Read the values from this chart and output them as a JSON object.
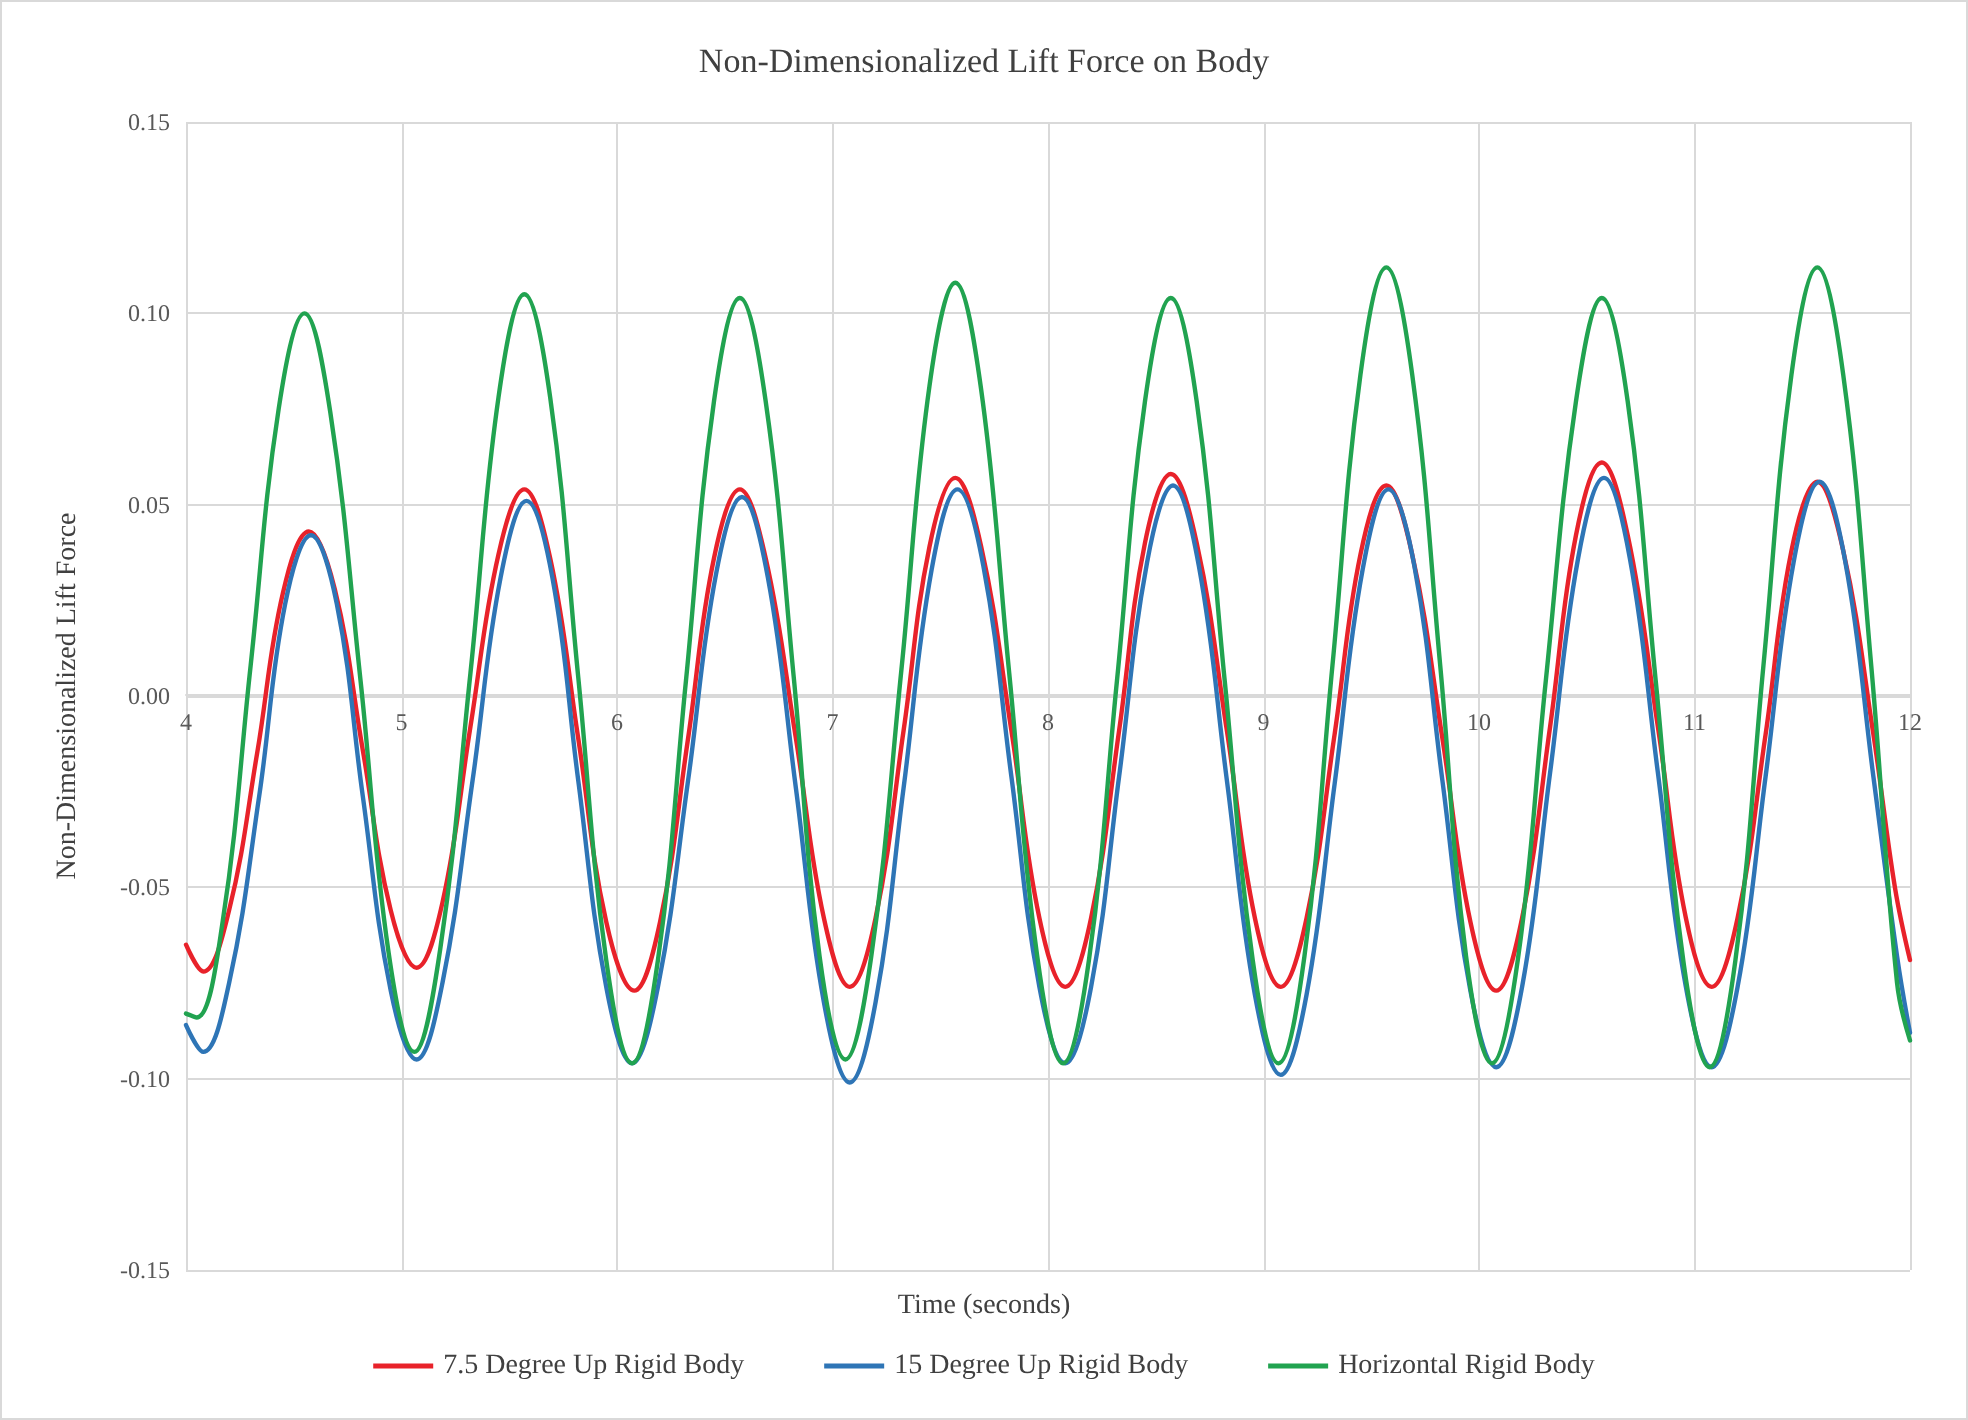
{
  "chart_data": {
    "type": "line",
    "title": "Non-Dimensionalized Lift Force on Body",
    "xlabel": "Time (seconds)",
    "ylabel": "Non-Dimensionalized Lift Force",
    "xlim": [
      4,
      12
    ],
    "xticks": [
      4,
      5,
      6,
      7,
      8,
      9,
      10,
      11,
      12
    ],
    "ylim": [
      -0.15,
      0.15
    ],
    "yticks": [
      {
        "value": -0.15,
        "label": "-0.15"
      },
      {
        "value": -0.1,
        "label": "-0.10"
      },
      {
        "value": -0.05,
        "label": "-0.05"
      },
      {
        "value": 0,
        "label": "0.00"
      },
      {
        "value": 0.05,
        "label": "0.05"
      },
      {
        "value": 0.1,
        "label": "0.10"
      },
      {
        "value": 0.15,
        "label": "0.15"
      }
    ],
    "grid": true,
    "legend": "bottom",
    "marker": "none",
    "line_style": "solid",
    "series": [
      {
        "name": "7.5 Degree Up Rigid Body",
        "color": "#e8222a",
        "x": [
          4.0,
          4.08,
          4.2,
          4.33,
          4.45,
          4.57,
          4.69,
          4.82,
          4.95,
          5.07,
          5.19,
          5.32,
          5.45,
          5.57,
          5.69,
          5.82,
          5.95,
          6.08,
          6.2,
          6.33,
          6.45,
          6.57,
          6.69,
          6.83,
          6.96,
          7.08,
          7.2,
          7.33,
          7.45,
          7.57,
          7.69,
          7.83,
          7.96,
          8.08,
          8.2,
          8.33,
          8.45,
          8.57,
          8.69,
          8.83,
          8.96,
          9.08,
          9.2,
          9.33,
          9.45,
          9.57,
          9.69,
          9.83,
          9.96,
          10.08,
          10.2,
          10.33,
          10.45,
          10.57,
          10.69,
          10.83,
          10.96,
          11.08,
          11.2,
          11.33,
          11.45,
          11.57,
          11.69,
          11.83,
          11.93,
          12.0
        ],
        "values": [
          -0.065,
          -0.072,
          -0.056,
          -0.015,
          0.027,
          0.043,
          0.028,
          -0.014,
          -0.056,
          -0.071,
          -0.054,
          -0.008,
          0.037,
          0.054,
          0.036,
          -0.011,
          -0.059,
          -0.077,
          -0.059,
          -0.011,
          0.036,
          0.054,
          0.036,
          -0.011,
          -0.058,
          -0.076,
          -0.058,
          -0.009,
          0.039,
          0.057,
          0.039,
          -0.009,
          -0.058,
          -0.076,
          -0.058,
          -0.009,
          0.04,
          0.058,
          0.04,
          -0.009,
          -0.058,
          -0.076,
          -0.058,
          -0.01,
          0.037,
          0.055,
          0.037,
          -0.011,
          -0.059,
          -0.077,
          -0.058,
          -0.008,
          0.042,
          0.061,
          0.042,
          -0.008,
          -0.058,
          -0.076,
          -0.058,
          -0.01,
          0.038,
          0.056,
          0.038,
          -0.01,
          -0.05,
          -0.069
        ]
      },
      {
        "name": "15 Degree Up Rigid Body",
        "color": "#2e75b6",
        "x": [
          4.0,
          4.08,
          4.2,
          4.34,
          4.46,
          4.58,
          4.7,
          4.82,
          4.95,
          5.07,
          5.19,
          5.33,
          5.46,
          5.58,
          5.7,
          5.82,
          5.95,
          6.07,
          6.19,
          6.33,
          6.46,
          6.58,
          6.7,
          6.83,
          6.96,
          7.08,
          7.2,
          7.33,
          7.46,
          7.58,
          7.7,
          7.83,
          7.96,
          8.08,
          8.2,
          8.33,
          8.46,
          8.58,
          8.7,
          8.83,
          8.96,
          9.08,
          9.2,
          9.33,
          9.46,
          9.58,
          9.7,
          9.83,
          9.96,
          10.08,
          10.2,
          10.33,
          10.46,
          10.58,
          10.7,
          10.83,
          10.96,
          11.08,
          11.2,
          11.33,
          11.46,
          11.58,
          11.7,
          11.83,
          11.94,
          12.0
        ],
        "values": [
          -0.086,
          -0.093,
          -0.075,
          -0.026,
          0.024,
          0.042,
          0.024,
          -0.026,
          -0.077,
          -0.095,
          -0.075,
          -0.022,
          0.031,
          0.051,
          0.031,
          -0.022,
          -0.076,
          -0.096,
          -0.076,
          -0.022,
          0.032,
          0.052,
          0.031,
          -0.024,
          -0.08,
          -0.101,
          -0.08,
          -0.024,
          0.033,
          0.054,
          0.034,
          -0.021,
          -0.076,
          -0.096,
          -0.076,
          -0.021,
          0.035,
          0.055,
          0.034,
          -0.022,
          -0.078,
          -0.099,
          -0.078,
          -0.023,
          0.033,
          0.054,
          0.034,
          -0.022,
          -0.077,
          -0.097,
          -0.076,
          -0.02,
          0.036,
          0.057,
          0.036,
          -0.02,
          -0.076,
          -0.097,
          -0.076,
          -0.021,
          0.035,
          0.056,
          0.035,
          -0.021,
          -0.068,
          -0.088
        ]
      },
      {
        "name": "Horizontal Rigid Body",
        "color": "#21a350",
        "x": [
          4.0,
          4.05,
          4.17,
          4.3,
          4.43,
          4.55,
          4.67,
          4.81,
          4.94,
          5.06,
          5.18,
          5.32,
          5.45,
          5.57,
          5.69,
          5.82,
          5.95,
          6.07,
          6.19,
          6.32,
          6.45,
          6.57,
          6.69,
          6.82,
          6.94,
          7.06,
          7.18,
          7.32,
          7.45,
          7.57,
          7.69,
          7.82,
          7.95,
          8.07,
          8.19,
          8.32,
          8.45,
          8.57,
          8.69,
          8.82,
          8.95,
          9.07,
          9.19,
          9.32,
          9.45,
          9.57,
          9.69,
          9.82,
          9.94,
          10.06,
          10.18,
          10.31,
          10.45,
          10.57,
          10.69,
          10.82,
          10.95,
          11.07,
          11.19,
          11.32,
          11.45,
          11.57,
          11.69,
          11.82,
          11.94,
          12.0
        ],
        "values": [
          -0.083,
          -0.084,
          -0.059,
          0.008,
          0.075,
          0.1,
          0.074,
          0.004,
          -0.067,
          -0.093,
          -0.066,
          0.006,
          0.078,
          0.105,
          0.078,
          0.005,
          -0.069,
          -0.096,
          -0.069,
          0.004,
          0.077,
          0.104,
          0.077,
          0.005,
          -0.068,
          -0.095,
          -0.068,
          0.007,
          0.081,
          0.108,
          0.08,
          0.006,
          -0.068,
          -0.096,
          -0.069,
          0.004,
          0.077,
          0.104,
          0.077,
          0.004,
          -0.069,
          -0.096,
          -0.068,
          0.008,
          0.084,
          0.112,
          0.084,
          0.008,
          -0.068,
          -0.096,
          -0.069,
          0.004,
          0.077,
          0.104,
          0.077,
          0.004,
          -0.07,
          -0.097,
          -0.069,
          0.008,
          0.084,
          0.112,
          0.084,
          0.008,
          -0.075,
          -0.09
        ]
      }
    ]
  }
}
